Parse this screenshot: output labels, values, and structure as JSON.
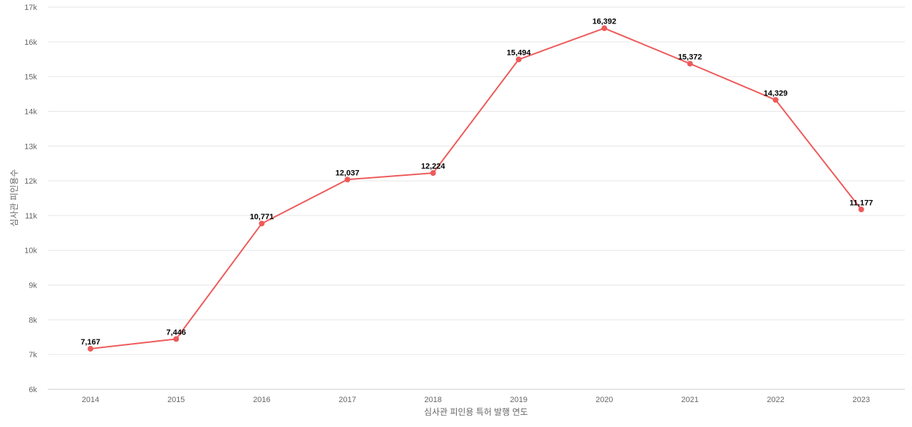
{
  "chart_data": {
    "type": "line",
    "title": "",
    "xlabel": "심사관 피인용 특허 발행 연도",
    "ylabel": "심사관 피인용수",
    "categories": [
      "2014",
      "2015",
      "2016",
      "2017",
      "2018",
      "2019",
      "2020",
      "2021",
      "2022",
      "2023"
    ],
    "series": [
      {
        "values": [
          7167,
          7446,
          10771,
          12037,
          12224,
          15494,
          16392,
          15372,
          14329,
          11177
        ],
        "labels": [
          "7,167",
          "7,446",
          "10,771",
          "12,037",
          "12,224",
          "15,494",
          "16,392",
          "15,372",
          "14,329",
          "11,177"
        ],
        "color": "#ee5a5a"
      }
    ],
    "ylim": [
      6000,
      17000
    ],
    "yticks": [
      6000,
      7000,
      8000,
      9000,
      10000,
      11000,
      12000,
      13000,
      14000,
      15000,
      16000,
      17000
    ],
    "ytick_labels": [
      "6k",
      "7k",
      "8k",
      "9k",
      "10k",
      "11k",
      "12k",
      "13k",
      "14k",
      "15k",
      "16k",
      "17k"
    ],
    "grid": true,
    "legend": "none"
  }
}
